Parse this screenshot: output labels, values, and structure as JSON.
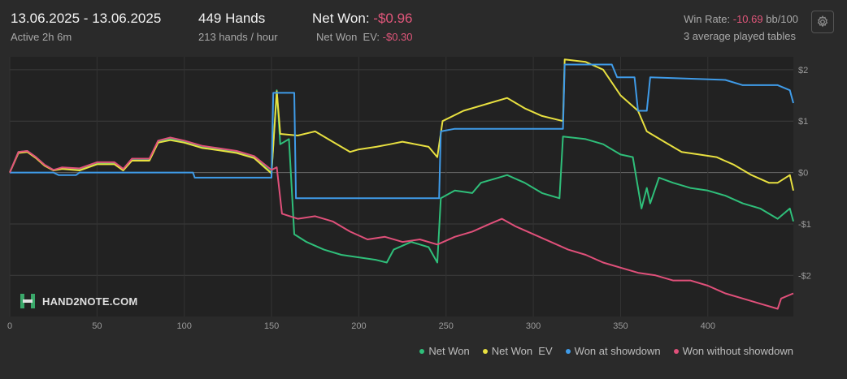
{
  "header": {
    "date_range": "13.06.2025 - 13.06.2025",
    "active": "Active 2h 6m",
    "hands": "449 Hands",
    "hands_per_hour": "213 hands / hour",
    "net_won_label": "Net Won: ",
    "net_won_value": "-$0.96",
    "net_won_ev_label": "Net Won  EV: ",
    "net_won_ev_value": "-$0.30",
    "win_rate_label": "Win Rate: ",
    "win_rate_value": "-10.69",
    "win_rate_unit": " bb/100",
    "tables": "3 average played tables",
    "settings_icon": "gear-icon"
  },
  "logo": {
    "text": "HAND2NOTE.COM",
    "icon": "h2n-logo-icon"
  },
  "legend": [
    {
      "label": "Net Won",
      "color": "#2fbf7a"
    },
    {
      "label": "Net Won  EV",
      "color": "#e8e040"
    },
    {
      "label": "Won at showdown",
      "color": "#3f9be8"
    },
    {
      "label": "Won without showdown",
      "color": "#e0507a"
    }
  ],
  "chart_data": {
    "type": "line",
    "xlim": [
      0,
      449
    ],
    "ylim": [
      -2.8,
      2.25
    ],
    "x_ticks": [
      0,
      50,
      100,
      150,
      200,
      250,
      300,
      350,
      400
    ],
    "x_tick_labels": [
      "0",
      "50",
      "100",
      "150",
      "200",
      "250",
      "300",
      "350",
      "400"
    ],
    "y_ticks": [
      2,
      1,
      0,
      -1,
      -2
    ],
    "y_tick_labels": [
      "$2",
      "$1",
      "$0",
      "-$1",
      "-$2"
    ],
    "grid": true,
    "legend_position": "bottom-right",
    "series": [
      {
        "name": "Net Won",
        "color": "#2fbf7a",
        "points": [
          [
            0,
            0
          ],
          [
            5,
            0.4
          ],
          [
            10,
            0.42
          ],
          [
            15,
            0.3
          ],
          [
            20,
            0.15
          ],
          [
            25,
            0.05
          ],
          [
            30,
            0.08
          ],
          [
            40,
            0.05
          ],
          [
            50,
            0.18
          ],
          [
            60,
            0.18
          ],
          [
            65,
            0.05
          ],
          [
            70,
            0.25
          ],
          [
            80,
            0.25
          ],
          [
            85,
            0.6
          ],
          [
            92,
            0.65
          ],
          [
            100,
            0.6
          ],
          [
            110,
            0.5
          ],
          [
            120,
            0.45
          ],
          [
            130,
            0.4
          ],
          [
            140,
            0.3
          ],
          [
            150,
            0
          ],
          [
            153,
            1.6
          ],
          [
            155,
            0.55
          ],
          [
            160,
            0.65
          ],
          [
            163,
            -1.2
          ],
          [
            170,
            -1.35
          ],
          [
            180,
            -1.5
          ],
          [
            190,
            -1.6
          ],
          [
            200,
            -1.65
          ],
          [
            210,
            -1.7
          ],
          [
            216,
            -1.75
          ],
          [
            220,
            -1.5
          ],
          [
            230,
            -1.35
          ],
          [
            240,
            -1.45
          ],
          [
            245,
            -1.75
          ],
          [
            247,
            -0.5
          ],
          [
            255,
            -0.35
          ],
          [
            265,
            -0.4
          ],
          [
            270,
            -0.2
          ],
          [
            280,
            -0.1
          ],
          [
            285,
            -0.05
          ],
          [
            295,
            -0.2
          ],
          [
            305,
            -0.4
          ],
          [
            315,
            -0.5
          ],
          [
            317,
            0.7
          ],
          [
            330,
            0.65
          ],
          [
            340,
            0.55
          ],
          [
            350,
            0.35
          ],
          [
            357,
            0.3
          ],
          [
            362,
            -0.7
          ],
          [
            365,
            -0.3
          ],
          [
            367,
            -0.6
          ],
          [
            372,
            -0.1
          ],
          [
            380,
            -0.2
          ],
          [
            390,
            -0.3
          ],
          [
            400,
            -0.35
          ],
          [
            410,
            -0.45
          ],
          [
            420,
            -0.6
          ],
          [
            430,
            -0.7
          ],
          [
            440,
            -0.9
          ],
          [
            447,
            -0.7
          ],
          [
            449,
            -0.95
          ]
        ]
      },
      {
        "name": "Net Won  EV",
        "color": "#e8e040",
        "points": [
          [
            0,
            0
          ],
          [
            5,
            0.38
          ],
          [
            10,
            0.4
          ],
          [
            15,
            0.28
          ],
          [
            20,
            0.13
          ],
          [
            25,
            0.04
          ],
          [
            30,
            0.07
          ],
          [
            40,
            0.04
          ],
          [
            50,
            0.16
          ],
          [
            60,
            0.16
          ],
          [
            65,
            0.04
          ],
          [
            70,
            0.23
          ],
          [
            80,
            0.23
          ],
          [
            85,
            0.58
          ],
          [
            92,
            0.63
          ],
          [
            100,
            0.58
          ],
          [
            110,
            0.48
          ],
          [
            120,
            0.43
          ],
          [
            130,
            0.38
          ],
          [
            140,
            0.28
          ],
          [
            150,
            -0.02
          ],
          [
            153,
            1.58
          ],
          [
            155,
            0.75
          ],
          [
            165,
            0.72
          ],
          [
            175,
            0.8
          ],
          [
            185,
            0.6
          ],
          [
            195,
            0.4
          ],
          [
            200,
            0.45
          ],
          [
            210,
            0.5
          ],
          [
            218,
            0.55
          ],
          [
            225,
            0.6
          ],
          [
            240,
            0.5
          ],
          [
            245,
            0.3
          ],
          [
            248,
            1.0
          ],
          [
            260,
            1.2
          ],
          [
            275,
            1.35
          ],
          [
            285,
            1.45
          ],
          [
            295,
            1.25
          ],
          [
            305,
            1.1
          ],
          [
            317,
            1.0
          ],
          [
            318,
            2.2
          ],
          [
            330,
            2.15
          ],
          [
            340,
            2.0
          ],
          [
            350,
            1.5
          ],
          [
            360,
            1.2
          ],
          [
            365,
            0.8
          ],
          [
            375,
            0.6
          ],
          [
            385,
            0.4
          ],
          [
            395,
            0.35
          ],
          [
            405,
            0.3
          ],
          [
            415,
            0.15
          ],
          [
            425,
            -0.05
          ],
          [
            435,
            -0.2
          ],
          [
            440,
            -0.2
          ],
          [
            447,
            -0.05
          ],
          [
            449,
            -0.35
          ]
        ]
      },
      {
        "name": "Won at showdown",
        "color": "#3f9be8",
        "points": [
          [
            0,
            0
          ],
          [
            25,
            0
          ],
          [
            28,
            -0.05
          ],
          [
            38,
            -0.05
          ],
          [
            40,
            0
          ],
          [
            105,
            0
          ],
          [
            106,
            -0.1
          ],
          [
            140,
            -0.1
          ],
          [
            150,
            -0.1
          ],
          [
            151,
            1.55
          ],
          [
            163,
            1.55
          ],
          [
            164,
            -0.5
          ],
          [
            246,
            -0.5
          ],
          [
            247,
            0.8
          ],
          [
            255,
            0.85
          ],
          [
            317,
            0.85
          ],
          [
            318,
            2.1
          ],
          [
            345,
            2.1
          ],
          [
            348,
            1.85
          ],
          [
            358,
            1.85
          ],
          [
            360,
            1.2
          ],
          [
            365,
            1.2
          ],
          [
            367,
            1.85
          ],
          [
            410,
            1.8
          ],
          [
            420,
            1.7
          ],
          [
            440,
            1.7
          ],
          [
            447,
            1.6
          ],
          [
            449,
            1.35
          ]
        ]
      },
      {
        "name": "Won without showdown",
        "color": "#e0507a",
        "points": [
          [
            0,
            0
          ],
          [
            5,
            0.4
          ],
          [
            10,
            0.42
          ],
          [
            15,
            0.3
          ],
          [
            20,
            0.15
          ],
          [
            25,
            0.05
          ],
          [
            30,
            0.1
          ],
          [
            40,
            0.08
          ],
          [
            50,
            0.2
          ],
          [
            60,
            0.2
          ],
          [
            65,
            0.07
          ],
          [
            70,
            0.27
          ],
          [
            80,
            0.27
          ],
          [
            85,
            0.62
          ],
          [
            92,
            0.68
          ],
          [
            100,
            0.62
          ],
          [
            110,
            0.52
          ],
          [
            120,
            0.47
          ],
          [
            130,
            0.42
          ],
          [
            140,
            0.32
          ],
          [
            150,
            0.05
          ],
          [
            153,
            0.1
          ],
          [
            156,
            -0.8
          ],
          [
            165,
            -0.9
          ],
          [
            175,
            -0.85
          ],
          [
            185,
            -0.95
          ],
          [
            195,
            -1.15
          ],
          [
            205,
            -1.3
          ],
          [
            215,
            -1.25
          ],
          [
            225,
            -1.35
          ],
          [
            235,
            -1.3
          ],
          [
            245,
            -1.4
          ],
          [
            255,
            -1.25
          ],
          [
            265,
            -1.15
          ],
          [
            275,
            -1.0
          ],
          [
            282,
            -0.9
          ],
          [
            290,
            -1.05
          ],
          [
            300,
            -1.2
          ],
          [
            310,
            -1.35
          ],
          [
            320,
            -1.5
          ],
          [
            330,
            -1.6
          ],
          [
            340,
            -1.75
          ],
          [
            350,
            -1.85
          ],
          [
            360,
            -1.95
          ],
          [
            370,
            -2.0
          ],
          [
            380,
            -2.1
          ],
          [
            390,
            -2.1
          ],
          [
            400,
            -2.2
          ],
          [
            410,
            -2.35
          ],
          [
            420,
            -2.45
          ],
          [
            430,
            -2.55
          ],
          [
            440,
            -2.65
          ],
          [
            442,
            -2.45
          ],
          [
            449,
            -2.35
          ]
        ]
      }
    ]
  }
}
